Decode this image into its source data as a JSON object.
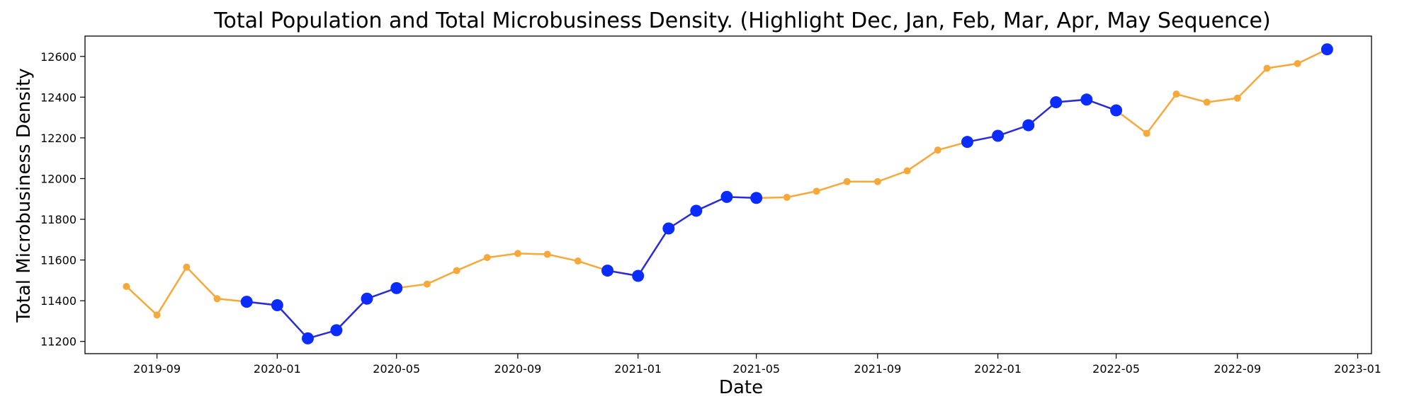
{
  "chart_data": {
    "type": "line",
    "title": "Total Population and Total Microbusiness Density. (Highlight Dec, Jan, Feb, Mar, Apr, May Sequence)",
    "xlabel": "Date",
    "ylabel": "Total Microbusiness Density",
    "xlim": [
      "2019-06-20",
      "2023-01-15"
    ],
    "ylim": [
      11140,
      12700
    ],
    "grid": false,
    "x_ticks": [
      "2019-09",
      "2020-01",
      "2020-05",
      "2020-09",
      "2021-01",
      "2021-05",
      "2021-09",
      "2022-01",
      "2022-05",
      "2022-09",
      "2023-01"
    ],
    "y_ticks": [
      11200,
      11400,
      11600,
      11800,
      12000,
      12200,
      12400,
      12600
    ],
    "colors": {
      "normal": "#f5a93a",
      "highlight": "#0a2cff",
      "highlight_line": "#2b2bd6"
    },
    "highlight_months": [
      "Dec",
      "Jan",
      "Feb",
      "Mar",
      "Apr",
      "May"
    ],
    "series": [
      {
        "dates": [
          "2019-08-01",
          "2019-09-01",
          "2019-10-01",
          "2019-11-01",
          "2019-12-01",
          "2020-01-01",
          "2020-02-01",
          "2020-03-01",
          "2020-04-01",
          "2020-05-01",
          "2020-06-01",
          "2020-07-01",
          "2020-08-01",
          "2020-09-01",
          "2020-10-01",
          "2020-11-01",
          "2020-12-01",
          "2021-01-01",
          "2021-02-01",
          "2021-03-01",
          "2021-04-01",
          "2021-05-01",
          "2021-06-01",
          "2021-07-01",
          "2021-08-01",
          "2021-09-01",
          "2021-10-01",
          "2021-11-01",
          "2021-12-01",
          "2022-01-01",
          "2022-02-01",
          "2022-03-01",
          "2022-04-01",
          "2022-05-01",
          "2022-06-01",
          "2022-07-01",
          "2022-08-01",
          "2022-09-01",
          "2022-10-01",
          "2022-11-01",
          "2022-12-01"
        ],
        "values": [
          11470,
          11330,
          11565,
          11410,
          11395,
          11378,
          11215,
          11255,
          11410,
          11462,
          11482,
          11548,
          11612,
          11632,
          11628,
          11595,
          11548,
          11522,
          11755,
          11842,
          11910,
          11905,
          11908,
          11938,
          11985,
          11985,
          12038,
          12140,
          12180,
          12210,
          12262,
          12375,
          12388,
          12335,
          12222,
          12415,
          12375,
          12395,
          12542,
          12565,
          12635
        ]
      }
    ]
  }
}
